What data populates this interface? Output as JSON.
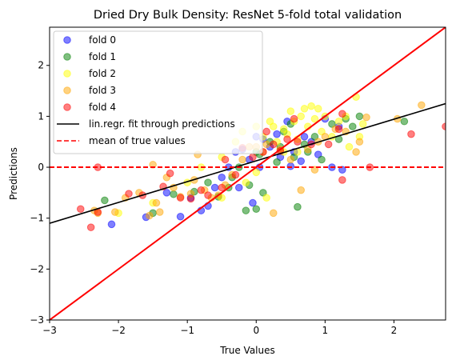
{
  "chart_data": {
    "type": "scatter",
    "title": "Dried Dry Bulk Density: ResNet 5-fold total validation",
    "xlabel": "True Values",
    "ylabel": "Predictions",
    "xlim": [
      -3,
      2.75
    ],
    "ylim": [
      -3,
      2.75
    ],
    "xticks": [
      -3,
      -2,
      -1,
      0,
      1,
      2
    ],
    "yticks": [
      -3,
      -2,
      -1,
      0,
      1,
      2
    ],
    "legend_position": "top-left",
    "grid": false,
    "series": [
      {
        "name": "fold 0",
        "color": "#0000ff",
        "points": [
          [
            -2.1,
            -1.12
          ],
          [
            -1.6,
            -0.98
          ],
          [
            -1.1,
            -0.97
          ],
          [
            -0.95,
            -0.6
          ],
          [
            -0.8,
            -0.85
          ],
          [
            -0.7,
            -0.76
          ],
          [
            -0.6,
            -0.4
          ],
          [
            -0.5,
            -0.2
          ],
          [
            -0.4,
            0.0
          ],
          [
            -0.3,
            0.3
          ],
          [
            -0.2,
            0.35
          ],
          [
            -0.1,
            0.15
          ],
          [
            0.0,
            0.6
          ],
          [
            0.05,
            0.0
          ],
          [
            0.1,
            0.55
          ],
          [
            0.2,
            0.4
          ],
          [
            0.3,
            0.65
          ],
          [
            0.35,
            0.2
          ],
          [
            0.45,
            0.9
          ],
          [
            0.55,
            0.3
          ],
          [
            0.65,
            0.12
          ],
          [
            0.7,
            0.6
          ],
          [
            0.8,
            0.5
          ],
          [
            0.9,
            0.25
          ],
          [
            1.0,
            0.95
          ],
          [
            1.1,
            0.0
          ],
          [
            1.2,
            0.8
          ],
          [
            1.25,
            -0.05
          ],
          [
            -1.3,
            -0.5
          ],
          [
            -0.25,
            -0.4
          ],
          [
            -0.05,
            -0.7
          ],
          [
            0.5,
            0.02
          ]
        ]
      },
      {
        "name": "fold 1",
        "color": "#008000",
        "points": [
          [
            -2.2,
            -0.65
          ],
          [
            -1.5,
            -0.9
          ],
          [
            -1.2,
            -0.53
          ],
          [
            -0.9,
            -0.48
          ],
          [
            -0.7,
            -0.3
          ],
          [
            -0.55,
            -0.58
          ],
          [
            -0.4,
            -0.4
          ],
          [
            -0.35,
            -0.2
          ],
          [
            -0.25,
            0.0
          ],
          [
            -0.15,
            -0.85
          ],
          [
            -0.1,
            -0.35
          ],
          [
            0.0,
            -0.82
          ],
          [
            0.05,
            0.25
          ],
          [
            0.1,
            -0.5
          ],
          [
            0.2,
            0.5
          ],
          [
            0.3,
            0.1
          ],
          [
            0.4,
            0.7
          ],
          [
            0.5,
            0.85
          ],
          [
            0.6,
            -0.78
          ],
          [
            0.7,
            0.45
          ],
          [
            0.75,
            0.3
          ],
          [
            0.85,
            0.6
          ],
          [
            0.95,
            0.15
          ],
          [
            1.1,
            0.85
          ],
          [
            1.2,
            0.55
          ],
          [
            1.3,
            0.95
          ],
          [
            1.4,
            0.8
          ],
          [
            1.5,
            1.0
          ],
          [
            2.15,
            0.9
          ],
          [
            0.55,
            0.2
          ],
          [
            0.0,
            0.3
          ],
          [
            0.35,
            0.4
          ]
        ]
      },
      {
        "name": "fold 2",
        "color": "#ffff00",
        "points": [
          [
            -2.0,
            -0.9
          ],
          [
            -1.5,
            -0.7
          ],
          [
            -1.0,
            -0.3
          ],
          [
            -0.8,
            0.0
          ],
          [
            -0.5,
            0.2
          ],
          [
            -0.3,
            0.5
          ],
          [
            -0.2,
            0.7
          ],
          [
            0.0,
            0.8
          ],
          [
            0.1,
            0.6
          ],
          [
            0.2,
            0.9
          ],
          [
            0.3,
            0.5
          ],
          [
            0.4,
            0.75
          ],
          [
            0.5,
            1.1
          ],
          [
            0.55,
            0.9
          ],
          [
            0.6,
            0.55
          ],
          [
            0.65,
            1.0
          ],
          [
            0.7,
            1.15
          ],
          [
            0.75,
            0.8
          ],
          [
            0.8,
            1.2
          ],
          [
            0.85,
            0.95
          ],
          [
            0.9,
            1.15
          ],
          [
            0.95,
            0.7
          ],
          [
            1.0,
            1.0
          ],
          [
            1.1,
            0.6
          ],
          [
            1.2,
            0.9
          ],
          [
            1.3,
            1.0
          ],
          [
            1.45,
            1.38
          ],
          [
            1.5,
            0.6
          ],
          [
            1.55,
            0.85
          ],
          [
            -0.15,
            -0.3
          ],
          [
            0.15,
            -0.6
          ],
          [
            0.4,
            0.3
          ],
          [
            0.6,
            0.3
          ],
          [
            -0.5,
            -0.6
          ],
          [
            0.0,
            -0.1
          ],
          [
            0.25,
            0.8
          ],
          [
            1.35,
            0.4
          ],
          [
            0.45,
            0.65
          ]
        ]
      },
      {
        "name": "fold 3",
        "color": "#ffa500",
        "points": [
          [
            -2.3,
            -0.9
          ],
          [
            -2.05,
            -0.88
          ],
          [
            -1.9,
            -0.6
          ],
          [
            -1.7,
            -0.5
          ],
          [
            -1.55,
            -0.95
          ],
          [
            -1.45,
            -0.7
          ],
          [
            -1.4,
            -0.88
          ],
          [
            -1.3,
            -0.2
          ],
          [
            -1.2,
            -0.4
          ],
          [
            -1.1,
            -0.58
          ],
          [
            -0.95,
            -0.52
          ],
          [
            -0.9,
            -0.25
          ],
          [
            -0.85,
            0.25
          ],
          [
            -0.75,
            -0.45
          ],
          [
            -0.65,
            -0.6
          ],
          [
            -0.55,
            -0.55
          ],
          [
            -0.45,
            -0.35
          ],
          [
            -0.35,
            -0.15
          ],
          [
            -0.2,
            0.15
          ],
          [
            -0.1,
            0.4
          ],
          [
            0.0,
            0.4
          ],
          [
            0.15,
            0.45
          ],
          [
            0.25,
            -0.9
          ],
          [
            0.35,
            0.35
          ],
          [
            0.5,
            0.15
          ],
          [
            0.65,
            -0.45
          ],
          [
            0.75,
            0.35
          ],
          [
            0.9,
            0.5
          ],
          [
            1.0,
            0.6
          ],
          [
            1.15,
            0.75
          ],
          [
            1.3,
            0.7
          ],
          [
            1.5,
            0.5
          ],
          [
            1.6,
            0.98
          ],
          [
            2.05,
            0.95
          ],
          [
            2.4,
            1.22
          ],
          [
            -1.5,
            0.05
          ],
          [
            -2.35,
            -0.85
          ],
          [
            0.1,
            0.3
          ],
          [
            0.85,
            -0.05
          ],
          [
            1.45,
            0.3
          ]
        ]
      },
      {
        "name": "fold 4",
        "color": "#ff0000",
        "points": [
          [
            -2.55,
            -0.82
          ],
          [
            -2.4,
            -1.18
          ],
          [
            -2.3,
            -0.88
          ],
          [
            -2.3,
            0.0
          ],
          [
            -1.85,
            -0.52
          ],
          [
            -1.65,
            -0.55
          ],
          [
            -1.35,
            -0.38
          ],
          [
            -1.25,
            -0.12
          ],
          [
            -1.1,
            -0.6
          ],
          [
            -0.95,
            -0.62
          ],
          [
            -0.8,
            -0.45
          ],
          [
            -0.7,
            -0.55
          ],
          [
            -0.5,
            -0.4
          ],
          [
            -0.45,
            0.15
          ],
          [
            -0.3,
            -0.15
          ],
          [
            -0.2,
            0.38
          ],
          [
            -0.05,
            0.2
          ],
          [
            0.1,
            0.3
          ],
          [
            0.15,
            0.7
          ],
          [
            0.25,
            0.45
          ],
          [
            0.45,
            0.55
          ],
          [
            0.55,
            0.95
          ],
          [
            0.6,
            0.5
          ],
          [
            1.05,
            0.45
          ],
          [
            1.2,
            0.75
          ],
          [
            1.25,
            1.05
          ],
          [
            1.25,
            -0.25
          ],
          [
            1.65,
            0.0
          ],
          [
            2.25,
            0.65
          ],
          [
            2.75,
            0.8
          ],
          [
            0.8,
            0.45
          ],
          [
            0.35,
            0.32
          ]
        ]
      }
    ],
    "lines": [
      {
        "name": "lin.regr. fit through predictions",
        "color": "#000000",
        "style": "solid",
        "points": [
          [
            -3,
            -1.1
          ],
          [
            2.75,
            1.25
          ]
        ]
      },
      {
        "name": "mean of true values",
        "color": "#ff0000",
        "style": "dashed",
        "points": [
          [
            -3,
            0.0
          ],
          [
            2.75,
            0.0
          ]
        ]
      },
      {
        "name": "",
        "color": "#ff0000",
        "style": "solid",
        "legend": false,
        "points": [
          [
            -3,
            -3
          ],
          [
            2.75,
            2.75
          ]
        ]
      }
    ]
  }
}
